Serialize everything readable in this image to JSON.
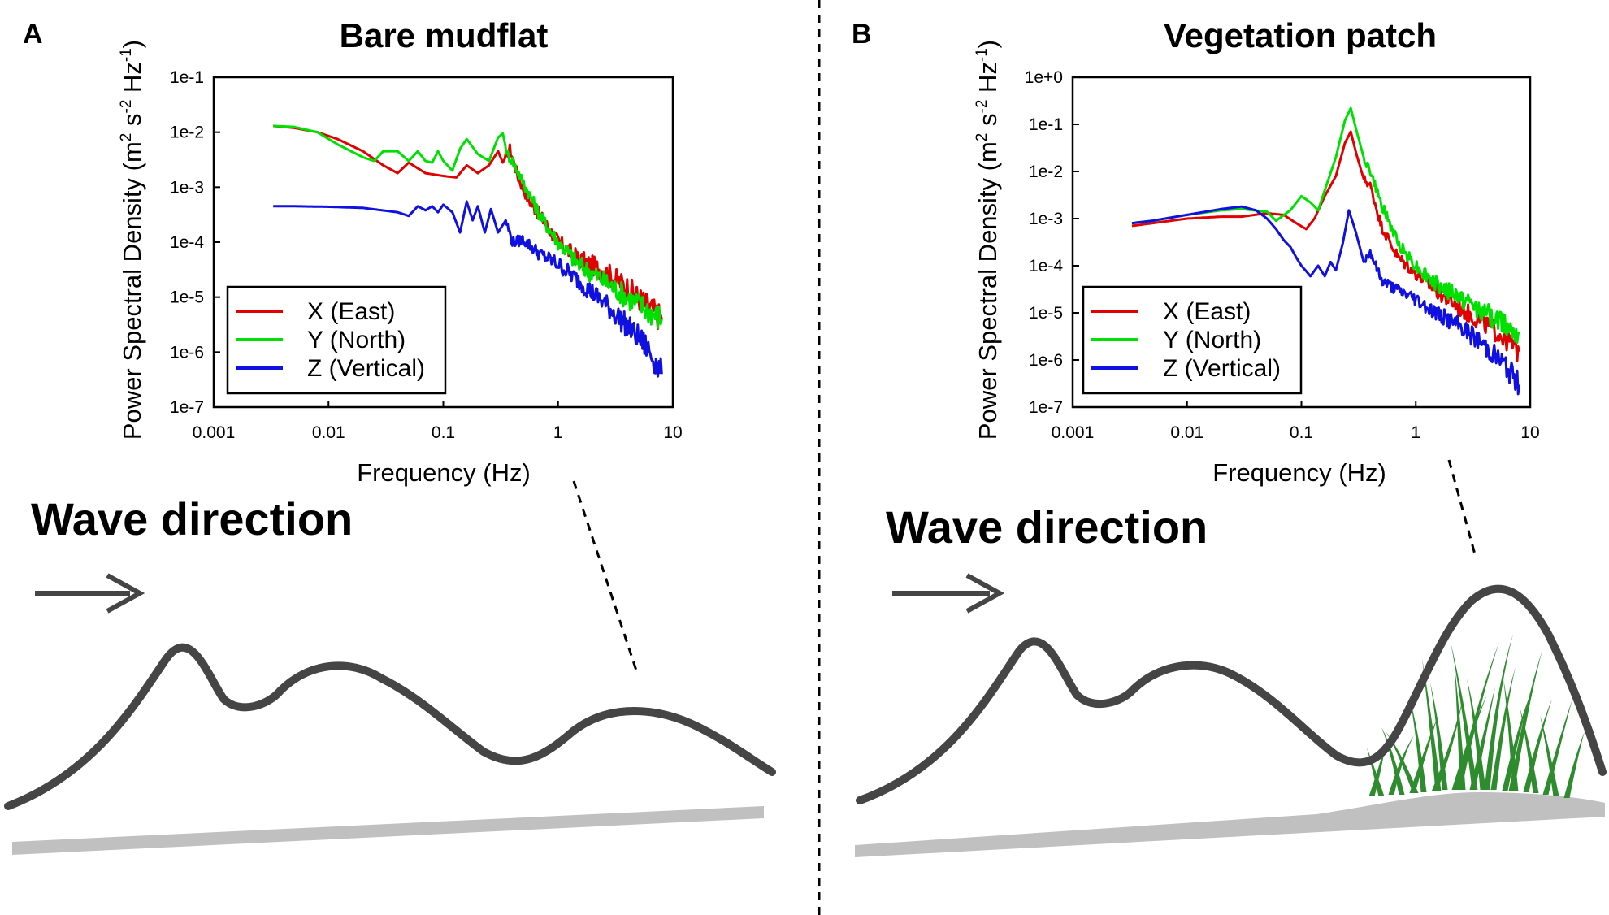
{
  "colors": {
    "x_east": "#e00000",
    "y_north": "#00e000",
    "z_vertical": "#1010e0",
    "wave": "#454545",
    "ground": "#c0c0c0",
    "grass": "#2e8b2e",
    "arrow": "#454545"
  },
  "wave_text": "Wave direction",
  "chart_data": [
    {
      "panel": "A",
      "type": "line",
      "title": "Bare mudflat",
      "xlabel": "Frequency (Hz)",
      "ylabel": {
        "base": "Power Spectral Density (m",
        "sup1": "2",
        "mid1": " s",
        "sup2": "-2",
        "mid2": " Hz",
        "sup3": "-1",
        "end": ")"
      },
      "xscale": "log",
      "yscale": "log",
      "xlim": [
        0.001,
        10
      ],
      "ylim": [
        1e-07,
        0.1
      ],
      "xtick_labels": [
        "0.001",
        "0.01",
        "0.1",
        "1",
        "10"
      ],
      "ytick_labels": [
        "1e-7",
        "1e-6",
        "1e-5",
        "1e-4",
        "1e-3",
        "1e-2",
        "1e-1"
      ],
      "legend_position": "bottom-left",
      "series": [
        {
          "name": "X (East)",
          "color_key": "x_east",
          "x": [
            0.0033,
            0.005,
            0.008,
            0.012,
            0.02,
            0.03,
            0.04,
            0.05,
            0.07,
            0.1,
            0.13,
            0.16,
            0.2,
            0.25,
            0.3,
            0.33,
            0.38,
            0.45,
            0.55,
            0.7,
            1.0,
            1.5,
            2.5,
            4.0,
            6.0,
            8.0
          ],
          "y": [
            0.013,
            0.012,
            0.01,
            0.0075,
            0.0045,
            0.0025,
            0.0018,
            0.0028,
            0.0018,
            0.0016,
            0.0015,
            0.0025,
            0.0018,
            0.0025,
            0.0045,
            0.0028,
            0.005,
            0.0015,
            0.0006,
            0.0003,
            0.0001,
            5e-05,
            3e-05,
            1.5e-05,
            7e-06,
            4e-06
          ]
        },
        {
          "name": "Y (North)",
          "color_key": "y_north",
          "x": [
            0.0033,
            0.005,
            0.008,
            0.012,
            0.02,
            0.025,
            0.03,
            0.04,
            0.05,
            0.06,
            0.07,
            0.08,
            0.09,
            0.1,
            0.12,
            0.14,
            0.16,
            0.2,
            0.25,
            0.3,
            0.33,
            0.36,
            0.4,
            0.5,
            0.7,
            1.0,
            1.5,
            2.5,
            4.0,
            6.0,
            8.0
          ],
          "y": [
            0.013,
            0.0125,
            0.01,
            0.006,
            0.0035,
            0.003,
            0.0045,
            0.0045,
            0.003,
            0.0045,
            0.003,
            0.0028,
            0.0045,
            0.003,
            0.002,
            0.005,
            0.0075,
            0.004,
            0.003,
            0.008,
            0.0095,
            0.004,
            0.003,
            0.0012,
            0.0003,
            0.0001,
            4e-05,
            2e-05,
            1e-05,
            6e-06,
            4e-06
          ]
        },
        {
          "name": "Z (Vertical)",
          "color_key": "z_vertical",
          "x": [
            0.0033,
            0.005,
            0.01,
            0.02,
            0.04,
            0.05,
            0.06,
            0.07,
            0.08,
            0.09,
            0.1,
            0.12,
            0.14,
            0.16,
            0.18,
            0.2,
            0.23,
            0.26,
            0.3,
            0.35,
            0.4,
            0.5,
            0.7,
            1.0,
            1.5,
            2.5,
            4.0,
            6.0,
            8.0
          ],
          "y": [
            0.00045,
            0.00045,
            0.00044,
            0.00042,
            0.00035,
            0.0003,
            0.00045,
            0.00038,
            0.00045,
            0.00035,
            0.00048,
            0.00035,
            0.00015,
            0.00055,
            0.00025,
            0.00045,
            0.00015,
            0.0004,
            0.00015,
            0.00025,
            0.0001,
            0.00011,
            6e-05,
            4e-05,
            2e-05,
            8e-06,
            3e-06,
            1.2e-06,
            4e-07
          ]
        }
      ]
    },
    {
      "panel": "B",
      "type": "line",
      "title": "Vegetation patch",
      "xlabel": "Frequency (Hz)",
      "ylabel": {
        "base": "Power Spectral Density (m",
        "sup1": "2",
        "mid1": " s",
        "sup2": "-2",
        "mid2": " Hz",
        "sup3": "-1",
        "end": ")"
      },
      "xscale": "log",
      "yscale": "log",
      "xlim": [
        0.001,
        10
      ],
      "ylim": [
        1e-07,
        1
      ],
      "xtick_labels": [
        "0.001",
        "0.01",
        "0.1",
        "1",
        "10"
      ],
      "ytick_labels": [
        "1e-7",
        "1e-6",
        "1e-5",
        "1e-4",
        "1e-3",
        "1e-2",
        "1e-1",
        "1e+0"
      ],
      "legend_position": "bottom-left",
      "series": [
        {
          "name": "X (East)",
          "color_key": "x_east",
          "x": [
            0.0033,
            0.005,
            0.01,
            0.02,
            0.03,
            0.05,
            0.07,
            0.09,
            0.11,
            0.13,
            0.16,
            0.2,
            0.24,
            0.27,
            0.3,
            0.35,
            0.4,
            0.5,
            0.7,
            1.0,
            1.5,
            2.5,
            4.0,
            6.0,
            8.0
          ],
          "y": [
            0.0007,
            0.0008,
            0.001,
            0.0011,
            0.0011,
            0.0013,
            0.0012,
            0.0008,
            0.0006,
            0.001,
            0.003,
            0.008,
            0.04,
            0.07,
            0.025,
            0.007,
            0.005,
            0.0007,
            0.00015,
            7e-05,
            3e-05,
            1.2e-05,
            6e-06,
            3e-06,
            1.5e-06
          ]
        },
        {
          "name": "Y (North)",
          "color_key": "y_north",
          "x": [
            0.0033,
            0.005,
            0.01,
            0.02,
            0.03,
            0.05,
            0.06,
            0.08,
            0.1,
            0.12,
            0.14,
            0.16,
            0.2,
            0.24,
            0.27,
            0.3,
            0.35,
            0.4,
            0.5,
            0.7,
            1.0,
            1.5,
            2.5,
            4.0,
            6.0,
            8.0
          ],
          "y": [
            0.0008,
            0.0009,
            0.0012,
            0.0015,
            0.0016,
            0.0014,
            0.0009,
            0.0015,
            0.003,
            0.0022,
            0.0015,
            0.004,
            0.02,
            0.12,
            0.22,
            0.08,
            0.02,
            0.01,
            0.002,
            0.0003,
            0.0001,
            4e-05,
            2e-05,
            1e-05,
            6e-06,
            4e-06
          ]
        },
        {
          "name": "Z (Vertical)",
          "color_key": "z_vertical",
          "x": [
            0.0033,
            0.005,
            0.01,
            0.02,
            0.03,
            0.04,
            0.05,
            0.06,
            0.07,
            0.08,
            0.09,
            0.1,
            0.12,
            0.14,
            0.16,
            0.18,
            0.2,
            0.23,
            0.26,
            0.3,
            0.35,
            0.4,
            0.5,
            0.7,
            1.0,
            1.5,
            2.5,
            4.0,
            6.0,
            8.0
          ],
          "y": [
            0.0008,
            0.0009,
            0.0012,
            0.0016,
            0.0018,
            0.0015,
            0.001,
            0.0006,
            0.00035,
            0.00025,
            0.00015,
            0.0001,
            6e-05,
            0.0001,
            6e-05,
            0.00012,
            8e-05,
            0.0003,
            0.0015,
            0.0005,
            0.00012,
            0.0002,
            5e-05,
            3e-05,
            2e-05,
            1e-05,
            5e-06,
            2e-06,
            8e-07,
            3e-07
          ]
        }
      ]
    }
  ]
}
